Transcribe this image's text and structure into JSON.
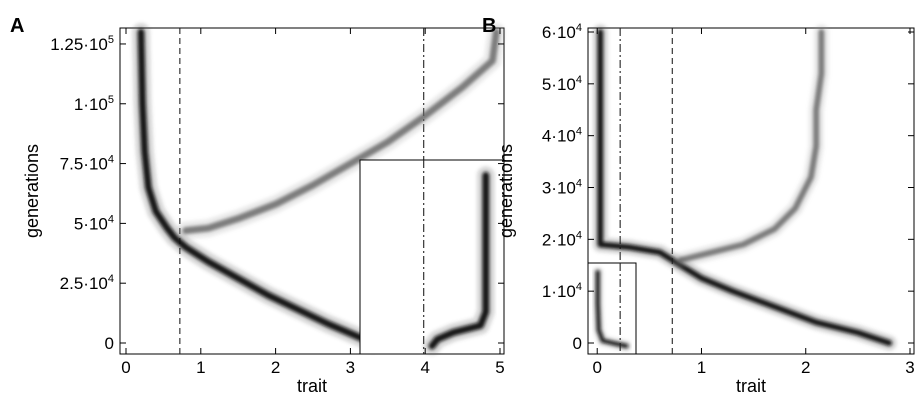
{
  "chart_data": [
    {
      "type": "scatter",
      "panel": "A",
      "xlabel": "trait",
      "ylabel": "generations",
      "xlim": [
        0,
        5
      ],
      "ylim": [
        0,
        130000
      ],
      "x_ticks": [
        {
          "v": 0,
          "label": "0"
        },
        {
          "v": 1,
          "label": "1"
        },
        {
          "v": 2,
          "label": "2"
        },
        {
          "v": 3,
          "label": "3"
        },
        {
          "v": 4,
          "label": "4"
        },
        {
          "v": 5,
          "label": "5"
        }
      ],
      "y_ticks": [
        {
          "v": 0,
          "label": "0"
        },
        {
          "v": 25000,
          "label": "2.5·10",
          "exp": "4"
        },
        {
          "v": 50000,
          "label": "5·10",
          "exp": "4"
        },
        {
          "v": 75000,
          "label": "7.5·10",
          "exp": "4"
        },
        {
          "v": 100000,
          "label": "1·10",
          "exp": "5"
        },
        {
          "v": 125000,
          "label": "1.25·10",
          "exp": "5"
        }
      ],
      "vlines": [
        {
          "x": 0.72,
          "style": "dashed"
        },
        {
          "x": 3.98,
          "style": "dashdot"
        }
      ],
      "series": [
        {
          "values": [
            [
              3.3,
              0
            ],
            [
              3.0,
              4000
            ],
            [
              2.7,
              8000
            ],
            [
              2.3,
              14000
            ],
            [
              1.9,
              20000
            ],
            [
              1.5,
              27000
            ],
            [
              1.1,
              34000
            ],
            [
              0.8,
              40000
            ],
            [
              0.65,
              44000
            ],
            [
              0.55,
              48000
            ],
            [
              0.4,
              55000
            ],
            [
              0.3,
              65000
            ],
            [
              0.25,
              80000
            ],
            [
              0.22,
              100000
            ],
            [
              0.2,
              130000
            ]
          ]
        },
        {
          "values": [
            [
              0.8,
              47000
            ],
            [
              1.1,
              48000
            ],
            [
              1.5,
              52000
            ],
            [
              2.0,
              58000
            ],
            [
              2.5,
              66000
            ],
            [
              3.0,
              75000
            ],
            [
              3.5,
              84000
            ],
            [
              4.0,
              95000
            ],
            [
              4.5,
              107000
            ],
            [
              4.9,
              118000
            ],
            [
              4.95,
              130000
            ]
          ]
        }
      ],
      "inset": {
        "xlim": [
          3.75,
          5.05
        ],
        "ylim": [
          0,
          80000
        ],
        "series": [
          {
            "values": [
              [
                4.4,
                0
              ],
              [
                4.45,
                3000
              ],
              [
                4.6,
                6000
              ],
              [
                4.85,
                9000
              ],
              [
                4.9,
                15000
              ],
              [
                4.9,
                40000
              ],
              [
                4.9,
                75000
              ]
            ]
          }
        ]
      }
    },
    {
      "type": "scatter",
      "panel": "B",
      "xlabel": "trait",
      "ylabel": "generations",
      "xlim": [
        -0.05,
        3.0
      ],
      "ylim": [
        0,
        60000
      ],
      "x_ticks": [
        {
          "v": 0,
          "label": "0"
        },
        {
          "v": 1,
          "label": "1"
        },
        {
          "v": 2,
          "label": "2"
        },
        {
          "v": 3,
          "label": "3"
        }
      ],
      "y_ticks": [
        {
          "v": 0,
          "label": "0"
        },
        {
          "v": 10000,
          "label": "1·10",
          "exp": "4"
        },
        {
          "v": 20000,
          "label": "2·10",
          "exp": "4"
        },
        {
          "v": 30000,
          "label": "3·10",
          "exp": "4"
        },
        {
          "v": 40000,
          "label": "4·10",
          "exp": "4"
        },
        {
          "v": 50000,
          "label": "5·10",
          "exp": "4"
        },
        {
          "v": 60000,
          "label": "6·10",
          "exp": "4"
        }
      ],
      "vlines": [
        {
          "x": 0.22,
          "style": "dashdot"
        },
        {
          "x": 0.72,
          "style": "dashed"
        }
      ],
      "series": [
        {
          "values": [
            [
              2.8,
              0
            ],
            [
              2.5,
              2000
            ],
            [
              2.1,
              4000
            ],
            [
              1.7,
              7000
            ],
            [
              1.3,
              10000
            ],
            [
              1.0,
              12500
            ],
            [
              0.8,
              15000
            ],
            [
              0.6,
              17500
            ],
            [
              0.3,
              18500
            ],
            [
              0.03,
              19000
            ],
            [
              0.03,
              30000
            ],
            [
              0.03,
              45000
            ],
            [
              0.03,
              60000
            ]
          ]
        },
        {
          "values": [
            [
              0.8,
              16000
            ],
            [
              1.1,
              17500
            ],
            [
              1.4,
              19000
            ],
            [
              1.7,
              22000
            ],
            [
              1.9,
              26000
            ],
            [
              2.05,
              32000
            ],
            [
              2.1,
              38000
            ],
            [
              2.1,
              45000
            ],
            [
              2.15,
              52000
            ],
            [
              2.15,
              60000
            ]
          ]
        }
      ],
      "inset": {
        "xlim": [
          -0.05,
          0.4
        ],
        "ylim": [
          0,
          15000
        ],
        "series": [
          {
            "values": [
              [
                0.32,
                0
              ],
              [
                0.2,
                500
              ],
              [
                0.08,
                1000
              ],
              [
                0.04,
                3000
              ],
              [
                0.03,
                8000
              ],
              [
                0.03,
                14000
              ]
            ]
          }
        ]
      }
    }
  ]
}
